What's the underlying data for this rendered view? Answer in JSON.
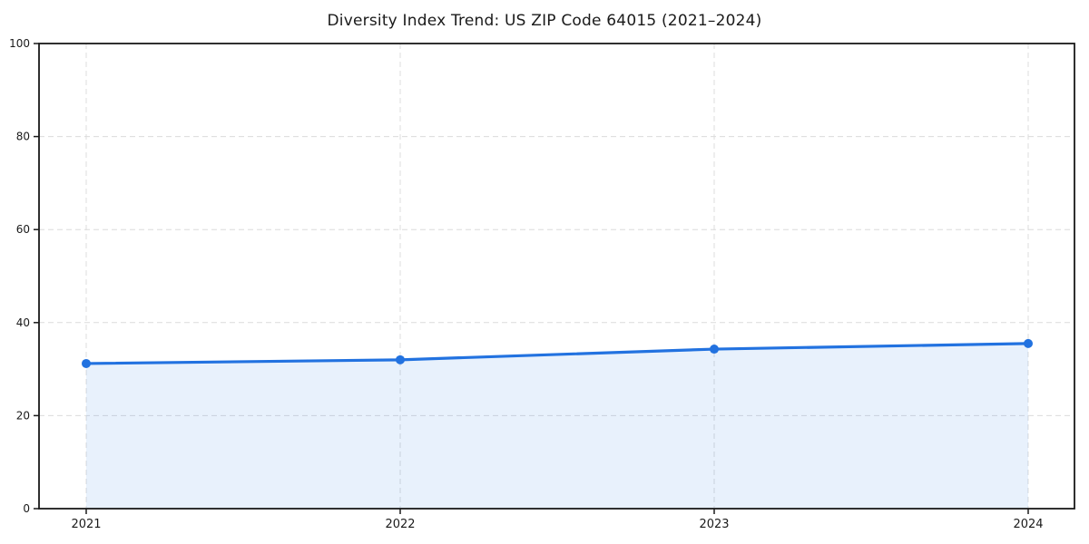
{
  "page": {
    "background_color": "#ffffff"
  },
  "chart_data": {
    "type": "area",
    "title": "Diversity Index Trend: US ZIP Code 64015 (2021–2024)",
    "series_name": "Diversity Index",
    "categories": [
      "2021",
      "2022",
      "2023",
      "2024"
    ],
    "values": [
      31.2,
      32.0,
      34.3,
      35.5
    ],
    "xlabel": "",
    "ylabel": "",
    "ylim": [
      0,
      100
    ],
    "y_ticks": [
      0,
      20,
      40,
      60,
      80,
      100
    ],
    "grid": true,
    "grid_style": "dashed",
    "legend_position": "none",
    "colors": {
      "line": "#2272e0",
      "marker": "#2272e0",
      "fill": "rgba(34,114,224,0.10)",
      "grid": "#dcdcdc",
      "spine": "#1a1a1a",
      "tick_text": "#1a1a1a",
      "title_text": "#1a1a1a"
    }
  }
}
